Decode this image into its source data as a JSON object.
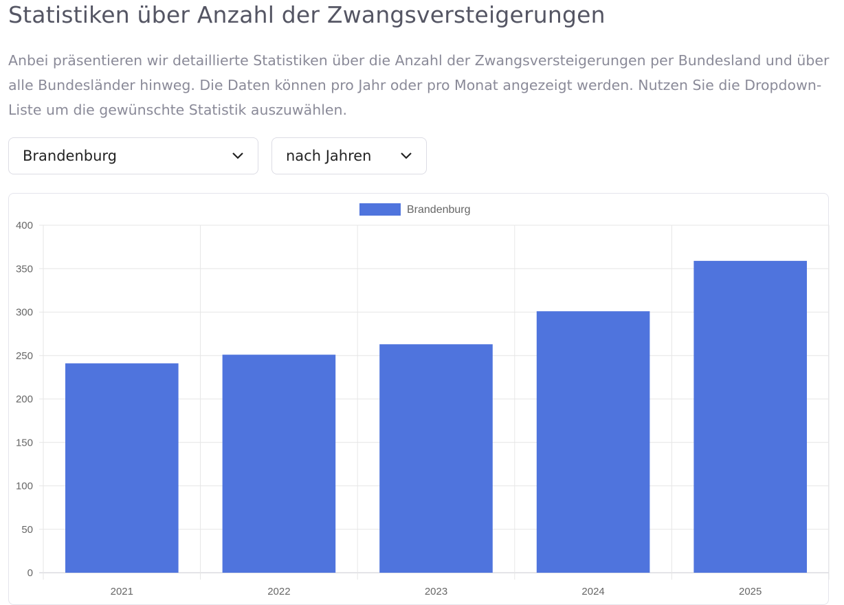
{
  "page": {
    "title": "Statistiken über Anzahl der Zwangsversteigerungen",
    "intro": "Anbei präsentieren wir detaillierte Statistiken über die Anzahl der Zwangsversteigerungen per Bundesland und über alle Bundesländer hinweg. Die Daten können pro Jahr oder pro Monat angezeigt werden. Nutzen Sie die Dropdown-Liste um die gewünschte Statistik auszuwählen."
  },
  "filters": {
    "state": "Brandenburg",
    "period": "nach Jahren"
  },
  "colors": {
    "bar": "#4f74dd"
  },
  "chart_data": {
    "type": "bar",
    "categories": [
      "2021",
      "2022",
      "2023",
      "2024",
      "2025"
    ],
    "series": [
      {
        "name": "Brandenburg",
        "values": [
          241,
          251,
          263,
          301,
          359
        ]
      }
    ],
    "ylim": [
      0,
      400
    ],
    "yticks": [
      0,
      50,
      100,
      150,
      200,
      250,
      300,
      350,
      400
    ],
    "legend": "top",
    "grid": true
  }
}
